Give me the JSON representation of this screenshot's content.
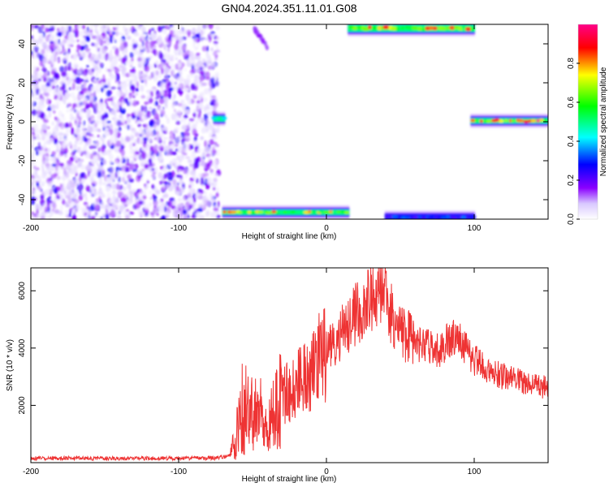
{
  "figure": {
    "title": "GN04.2024.351.11.01.G08"
  },
  "chart_data": [
    {
      "type": "heatmap",
      "title": "GN04.2024.351.11.01.G08",
      "xlabel": "Height of straight line (km)",
      "ylabel": "Frequency (Hz)",
      "xlim": [
        -200,
        150
      ],
      "ylim": [
        -50,
        50
      ],
      "xticks": [
        -200,
        -100,
        0,
        100
      ],
      "yticks": [
        -40,
        -20,
        0,
        20,
        40
      ],
      "colorbar": {
        "label": "Normalized spectral amplitude",
        "range": [
          0,
          1
        ],
        "ticks": [
          "0.0",
          "0.2",
          "0.4",
          "0.6",
          "0.8"
        ],
        "colormap": [
          "#ffffff",
          "#8a00ff",
          "#0000ff",
          "#00ffff",
          "#00ff00",
          "#ffff00",
          "#ff0000",
          "#ff00aa"
        ]
      },
      "regions": [
        {
          "name": "noise-speckle",
          "x": [
            -200,
            -73
          ],
          "freq": [
            -50,
            50
          ],
          "level": 0.1
        },
        {
          "name": "blob-near-zero",
          "x": [
            -76,
            -69
          ],
          "freq": [
            0,
            3
          ],
          "level": 0.5
        },
        {
          "name": "band-low",
          "x": [
            -70,
            15
          ],
          "freq": [
            -48,
            -45
          ],
          "level": 0.75
        },
        {
          "name": "band-top",
          "x": [
            15,
            100
          ],
          "freq": [
            46,
            50
          ],
          "level": 0.8
        },
        {
          "name": "band-bottom-edge",
          "x": [
            40,
            100
          ],
          "freq": [
            -50,
            -48
          ],
          "level": 0.3
        },
        {
          "name": "band-zero",
          "x": [
            98,
            150
          ],
          "freq": [
            -1,
            2
          ],
          "level": 0.9
        },
        {
          "name": "tail-top",
          "x": [
            -50,
            -40
          ],
          "freq": [
            38,
            50
          ],
          "level": 0.1
        }
      ]
    },
    {
      "type": "line",
      "xlabel": "Height of straight line (km)",
      "ylabel": "SNR (10 * v/v)",
      "xlim": [
        -200,
        150
      ],
      "ylim": [
        0,
        6800
      ],
      "xticks": [
        -200,
        -100,
        0,
        100
      ],
      "yticks": [
        2000,
        4000,
        6000
      ],
      "color": "#ee3333",
      "series": [
        {
          "x": [
            -200,
            -150,
            -100,
            -75,
            -65,
            -60,
            -55,
            -50,
            -45,
            -40,
            -35,
            -30,
            -25,
            -20,
            -15,
            -10,
            -5,
            0,
            5,
            10,
            15,
            20,
            25,
            30,
            35,
            40,
            45,
            50,
            55,
            60,
            65,
            70,
            75,
            80,
            85,
            90,
            95,
            100,
            110,
            120,
            130,
            140,
            150
          ],
          "values": [
            150,
            150,
            150,
            160,
            250,
            1100,
            1800,
            1800,
            1300,
            1000,
            2000,
            2300,
            2500,
            2700,
            3000,
            3200,
            3600,
            3800,
            4100,
            4500,
            4900,
            5200,
            5500,
            5800,
            5900,
            5700,
            5100,
            4600,
            4400,
            4200,
            4100,
            4000,
            3900,
            4100,
            4400,
            4300,
            3900,
            3600,
            3200,
            3000,
            2900,
            2700,
            2600
          ]
        }
      ]
    }
  ]
}
